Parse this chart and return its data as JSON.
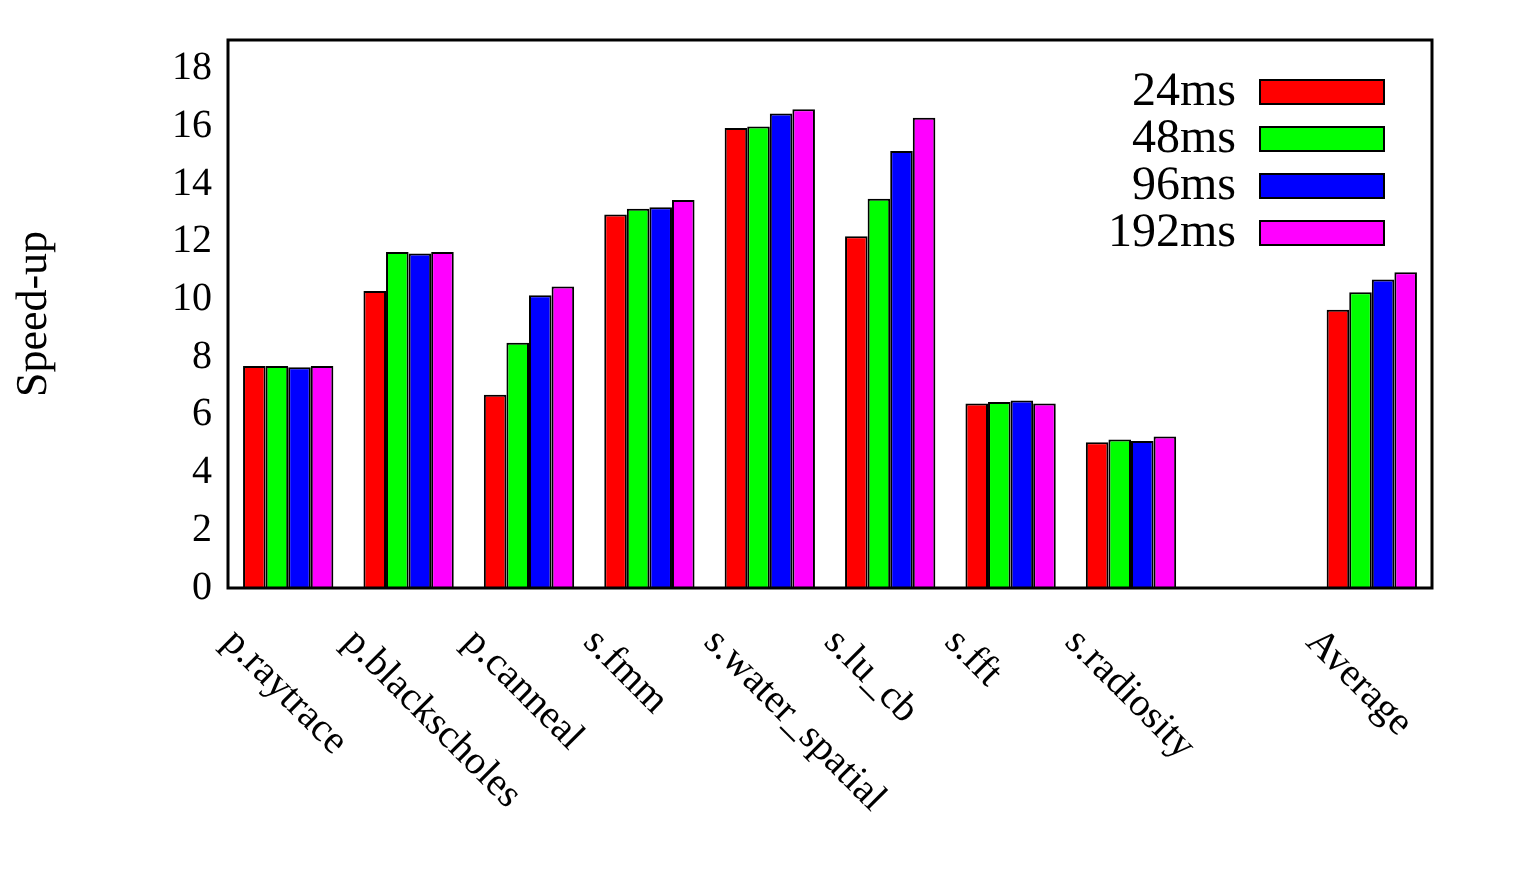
{
  "chart_data": {
    "type": "bar",
    "ylabel": "Speed-up",
    "categories": [
      "p.raytrace",
      "p.blackscholes",
      "p.canneal",
      "s.fmm",
      "s.water_spatial",
      "s.lu_cb",
      "s.fft",
      "s.radiosity",
      null,
      "Average"
    ],
    "series": [
      {
        "name": "24ms",
        "color": "#ff0000",
        "values": [
          7.7,
          10.3,
          6.7,
          12.95,
          15.95,
          12.2,
          6.4,
          5.05,
          null,
          9.65
        ]
      },
      {
        "name": "48ms",
        "color": "#00ff00",
        "values": [
          7.7,
          11.65,
          8.5,
          13.15,
          16.0,
          13.5,
          6.45,
          5.15,
          null,
          10.25
        ]
      },
      {
        "name": "96ms",
        "color": "#0000ff",
        "values": [
          7.65,
          11.6,
          10.15,
          13.2,
          16.45,
          15.15,
          6.5,
          5.1,
          null,
          10.7
        ]
      },
      {
        "name": "192ms",
        "color": "#ff00ff",
        "values": [
          7.7,
          11.65,
          10.45,
          13.45,
          16.6,
          16.3,
          6.4,
          5.25,
          null,
          10.95
        ]
      }
    ],
    "ylim": [
      0,
      19
    ],
    "yticks": [
      0,
      2,
      4,
      6,
      8,
      10,
      12,
      14,
      16,
      18
    ],
    "grid": false,
    "legend": "top right"
  }
}
